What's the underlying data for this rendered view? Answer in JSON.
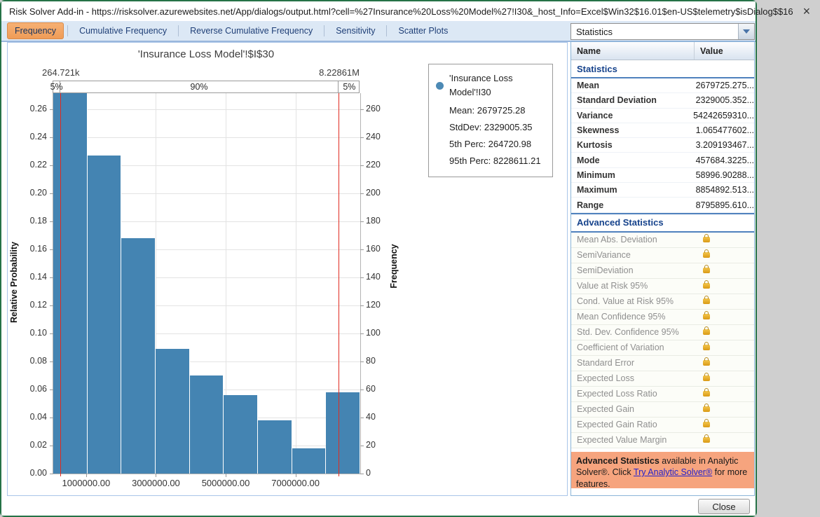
{
  "window": {
    "title": "Risk Solver Add-in - https://risksolver.azurewebsites.net/App/dialogs/output.html?cell=%27Insurance%20Loss%20Model%27!I30&_host_Info=Excel$Win32$16.01$en-US$telemetry$isDialog$$16",
    "close_glyph": "×"
  },
  "tabs": [
    {
      "label": "Frequency",
      "active": true
    },
    {
      "label": "Cumulative Frequency",
      "active": false
    },
    {
      "label": "Reverse Cumulative Frequency",
      "active": false
    },
    {
      "label": "Sensitivity",
      "active": false
    },
    {
      "label": "Scatter Plots",
      "active": false
    }
  ],
  "chart_data": {
    "type": "bar",
    "title": "'Insurance Loss Model'!$I$30",
    "ylabel_left": "Relative Probability",
    "ylabel_right": "Frequency",
    "x_min": 58996.9,
    "x_max": 8854892.5,
    "y_axis_max": 0.2715,
    "bin_start": 58996.9,
    "bin_width": 977321.73,
    "values": [
      0.272,
      0.227,
      0.168,
      0.089,
      0.07,
      0.056,
      0.038,
      0.018,
      0.058
    ],
    "frequencies": [
      272,
      227,
      168,
      89,
      70,
      56,
      38,
      18,
      58
    ],
    "x_ticks": [
      1000000,
      3000000,
      5000000,
      7000000
    ],
    "x_tick_labels": [
      "1000000.00",
      "3000000.00",
      "5000000.00",
      "7000000.00"
    ],
    "y_ticks": [
      0.0,
      0.02,
      0.04,
      0.06,
      0.08,
      0.1,
      0.12,
      0.14,
      0.16,
      0.18,
      0.2,
      0.22,
      0.24,
      0.26
    ],
    "freq_ticks": [
      0,
      20,
      40,
      60,
      80,
      100,
      120,
      140,
      160,
      180,
      200,
      220,
      240,
      260
    ],
    "bar_color": "#4484b2",
    "percentile_line_color": "#e02b20",
    "p5_value": 264720.98,
    "p95_value": 8228611.21,
    "p5_marker_label": "264.721k",
    "p95_marker_label": "8.22861M",
    "band_labels": [
      "5%",
      "90%",
      "5%"
    ],
    "legend": {
      "marker_color": "#4d8ab5",
      "series_label": "'Insurance Loss Model'!I30",
      "lines": [
        "Mean: 2679725.28",
        "StdDev: 2329005.35",
        "5th Perc: 264720.98",
        "95th Perc: 8228611.21"
      ]
    }
  },
  "side_panel": {
    "dropdown_value": "Statistics",
    "columns": [
      "Name",
      "Value"
    ],
    "statistics": {
      "title": "Statistics",
      "rows": [
        {
          "name": "Mean",
          "value": "2679725.275..."
        },
        {
          "name": "Standard Deviation",
          "value": "2329005.352..."
        },
        {
          "name": "Variance",
          "value": "54242659310..."
        },
        {
          "name": "Skewness",
          "value": "1.065477602..."
        },
        {
          "name": "Kurtosis",
          "value": "3.209193467..."
        },
        {
          "name": "Mode",
          "value": "457684.3225..."
        },
        {
          "name": "Minimum",
          "value": "58996.90288..."
        },
        {
          "name": "Maximum",
          "value": "8854892.513..."
        },
        {
          "name": "Range",
          "value": "8795895.610..."
        }
      ]
    },
    "advanced": {
      "title": "Advanced Statistics",
      "rows": [
        "Mean Abs. Deviation",
        "SemiVariance",
        "SemiDeviation",
        "Value at Risk 95%",
        "Cond. Value at Risk 95%",
        "Mean Confidence 95%",
        "Std. Dev. Confidence 95%",
        "Coefficient of Variation",
        "Standard Error",
        "Expected Loss",
        "Expected Loss Ratio",
        "Expected Gain",
        "Expected Gain Ratio",
        "Expected Value Margin"
      ]
    },
    "notice": {
      "lead": "Advanced Statistics",
      "middle": " available in Analytic Solver®. Click ",
      "link_text": "Try Analytic Solver®",
      "tail": " for more features."
    }
  },
  "footer": {
    "close_label": "Close"
  },
  "colors": {
    "window_border": "#257247",
    "active_tab": "#f2a262",
    "bar": "#4484b2",
    "percentile_line": "#e02b20",
    "section_header_text": "#15428b",
    "notice_bg": "#f6a47e",
    "link": "#2222cc",
    "lock": "#e2a117"
  }
}
